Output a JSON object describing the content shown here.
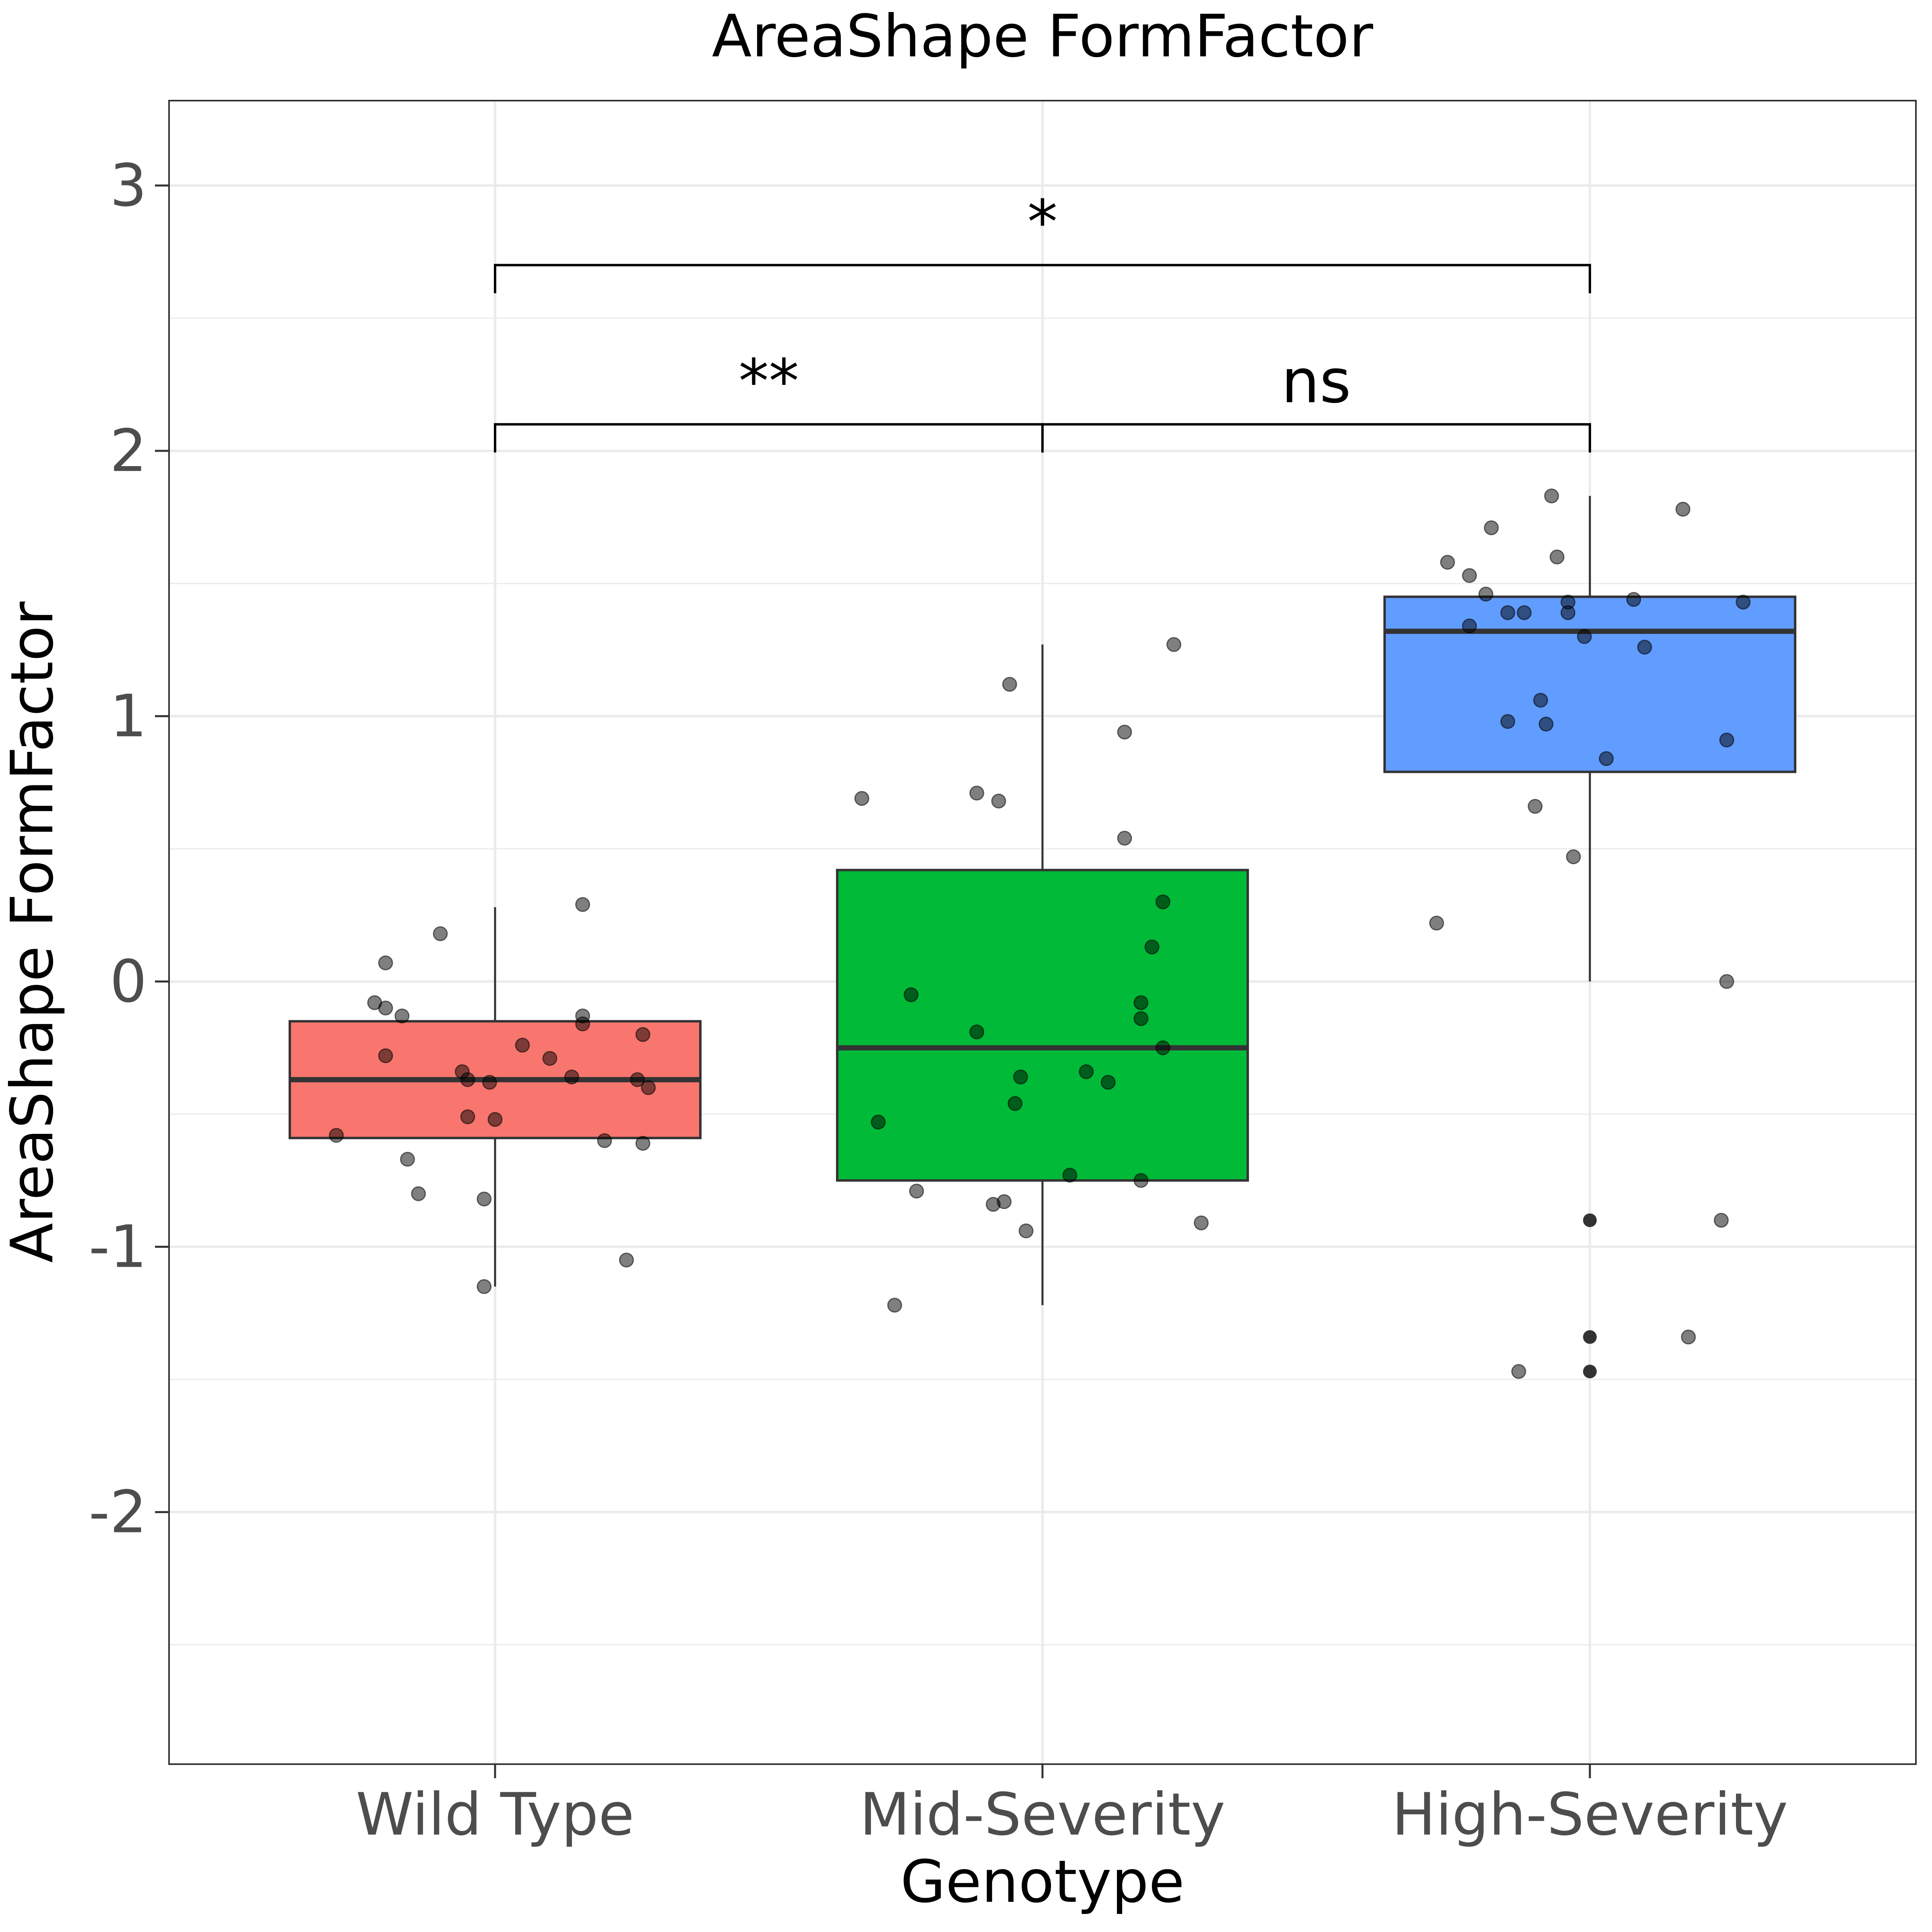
{
  "chart_data": {
    "type": "box",
    "title": "AreaShape FormFactor",
    "xlabel": "Genotype",
    "ylabel": "AreaShape FormFactor",
    "ylim": [
      -2.95,
      3.32
    ],
    "yticks": [
      -2,
      -1,
      0,
      1,
      2,
      3
    ],
    "ytick_labels": [
      "-2",
      "-1",
      "0",
      "1",
      "2",
      "3"
    ],
    "grid": true,
    "categories": [
      "Wild Type",
      "Mid-Severity",
      "High-Severity"
    ],
    "colors": [
      "#F8766D",
      "#00BA38",
      "#619CFF"
    ],
    "boxes": [
      {
        "q1": -0.59,
        "median": -0.37,
        "q3": -0.15,
        "whisker_low": -1.15,
        "whisker_high": 0.28,
        "outliers": []
      },
      {
        "q1": -0.75,
        "median": -0.25,
        "q3": 0.42,
        "whisker_low": -1.22,
        "whisker_high": 1.27,
        "outliers": []
      },
      {
        "q1": 0.79,
        "median": 1.32,
        "q3": 1.45,
        "whisker_low": 0.0,
        "whisker_high": 1.83,
        "outliers": [
          -0.9,
          -1.34,
          -1.47
        ]
      }
    ],
    "points": [
      [
        [
          -0.2,
          0.07
        ],
        [
          -0.1,
          0.18
        ],
        [
          0.16,
          0.29
        ],
        [
          -0.22,
          -0.08
        ],
        [
          -0.2,
          -0.1
        ],
        [
          -0.17,
          -0.13
        ],
        [
          -0.2,
          -0.28
        ],
        [
          0.05,
          -0.24
        ],
        [
          0.1,
          -0.29
        ],
        [
          0.16,
          -0.13
        ],
        [
          0.16,
          -0.16
        ],
        [
          0.27,
          -0.2
        ],
        [
          -0.06,
          -0.34
        ],
        [
          -0.05,
          -0.37
        ],
        [
          -0.01,
          -0.38
        ],
        [
          0.14,
          -0.36
        ],
        [
          0.26,
          -0.37
        ],
        [
          0.28,
          -0.4
        ],
        [
          -0.05,
          -0.51
        ],
        [
          0.0,
          -0.52
        ],
        [
          -0.29,
          -0.58
        ],
        [
          0.2,
          -0.6
        ],
        [
          0.27,
          -0.61
        ],
        [
          -0.16,
          -0.67
        ],
        [
          -0.14,
          -0.8
        ],
        [
          -0.02,
          -0.82
        ],
        [
          0.24,
          -1.05
        ],
        [
          -0.02,
          -1.15
        ]
      ],
      [
        [
          -0.33,
          0.69
        ],
        [
          -0.12,
          0.71
        ],
        [
          -0.08,
          0.68
        ],
        [
          -0.06,
          1.12
        ],
        [
          0.24,
          1.27
        ],
        [
          0.15,
          0.94
        ],
        [
          0.15,
          0.54
        ],
        [
          0.22,
          0.3
        ],
        [
          0.2,
          0.13
        ],
        [
          -0.24,
          -0.05
        ],
        [
          0.18,
          -0.08
        ],
        [
          0.18,
          -0.14
        ],
        [
          -0.12,
          -0.19
        ],
        [
          0.22,
          -0.25
        ],
        [
          -0.04,
          -0.36
        ],
        [
          0.08,
          -0.34
        ],
        [
          0.12,
          -0.38
        ],
        [
          -0.05,
          -0.46
        ],
        [
          -0.3,
          -0.53
        ],
        [
          0.05,
          -0.73
        ],
        [
          -0.23,
          -0.79
        ],
        [
          0.18,
          -0.75
        ],
        [
          -0.07,
          -0.83
        ],
        [
          -0.09,
          -0.84
        ],
        [
          -0.03,
          -0.94
        ],
        [
          0.29,
          -0.91
        ],
        [
          -0.27,
          -1.22
        ]
      ],
      [
        [
          -0.07,
          1.83
        ],
        [
          0.17,
          1.78
        ],
        [
          -0.18,
          1.71
        ],
        [
          -0.26,
          1.58
        ],
        [
          -0.06,
          1.6
        ],
        [
          -0.22,
          1.53
        ],
        [
          -0.19,
          1.46
        ],
        [
          -0.04,
          1.43
        ],
        [
          0.08,
          1.44
        ],
        [
          0.28,
          1.43
        ],
        [
          -0.15,
          1.39
        ],
        [
          -0.12,
          1.39
        ],
        [
          -0.04,
          1.39
        ],
        [
          -0.22,
          1.34
        ],
        [
          -0.01,
          1.3
        ],
        [
          0.1,
          1.26
        ],
        [
          -0.09,
          1.06
        ],
        [
          -0.15,
          0.98
        ],
        [
          -0.08,
          0.97
        ],
        [
          0.25,
          0.91
        ],
        [
          0.03,
          0.84
        ],
        [
          -0.1,
          0.66
        ],
        [
          -0.03,
          0.47
        ],
        [
          -0.28,
          0.22
        ],
        [
          0.25,
          0.0
        ],
        [
          0.24,
          -0.9
        ],
        [
          0.18,
          -1.34
        ],
        [
          -0.13,
          -1.47
        ]
      ]
    ],
    "comparisons": [
      {
        "from": 0,
        "to": 1,
        "y": 2.1,
        "label": "**",
        "label_x": 0.5
      },
      {
        "from": 1,
        "to": 2,
        "y": 2.1,
        "label": "ns",
        "label_x": 1.5
      },
      {
        "from": 0,
        "to": 2,
        "y": 2.7,
        "label": "*",
        "label_x": 1.0
      }
    ]
  }
}
